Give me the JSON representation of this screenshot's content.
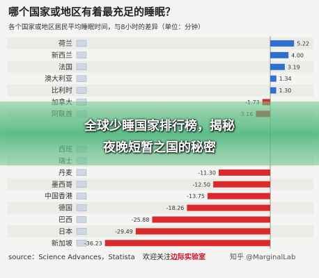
{
  "header": {
    "title": "哪个国家或地区有着最充足的睡眠？",
    "subtitle": "各个国家或地区居民平均睡眠时间，与8小时的差异（单位：分钟）"
  },
  "banner": {
    "line1": "全球少睡国家排行榜，揭秘",
    "line2": "夜晚短暂之国的秘密"
  },
  "footer": {
    "source": "source：Science Advances，Statista",
    "welcome": "欢迎关注",
    "lab": "边际实验室",
    "zhihu": "知乎 @MarginalLab"
  },
  "colors": {
    "positive": "#2f6fd0",
    "negative": "#d92b2b",
    "label": "#333333"
  },
  "chart_data": {
    "type": "bar",
    "orientation": "horizontal",
    "categories": [
      "荷兰",
      "新西兰",
      "法国",
      "澳大利亚",
      "比利时",
      "加拿大",
      "阿联酋",
      "",
      "",
      "西班",
      "瑞士",
      "丹麦",
      "墨西哥",
      "中国香港",
      "德国",
      "巴西",
      "日本",
      "新加坡"
    ],
    "values": [
      5.22,
      4.0,
      3.19,
      1.34,
      1.3,
      -1.73,
      -3.16,
      null,
      null,
      null,
      null,
      -11.3,
      -12.5,
      -13.75,
      -18.26,
      -25.88,
      -29.49,
      -36.23
    ],
    "value_labels": [
      "5.22",
      "4.00",
      "3.19",
      "1.34",
      "1.30",
      "-1.73",
      "-3.16",
      "",
      "",
      "",
      "",
      "-11.30",
      "-12.50",
      "-13.75",
      "-18.26",
      "-25.88",
      "-29.49",
      "-36.23"
    ],
    "xlim": [
      -38,
      6.5
    ]
  }
}
